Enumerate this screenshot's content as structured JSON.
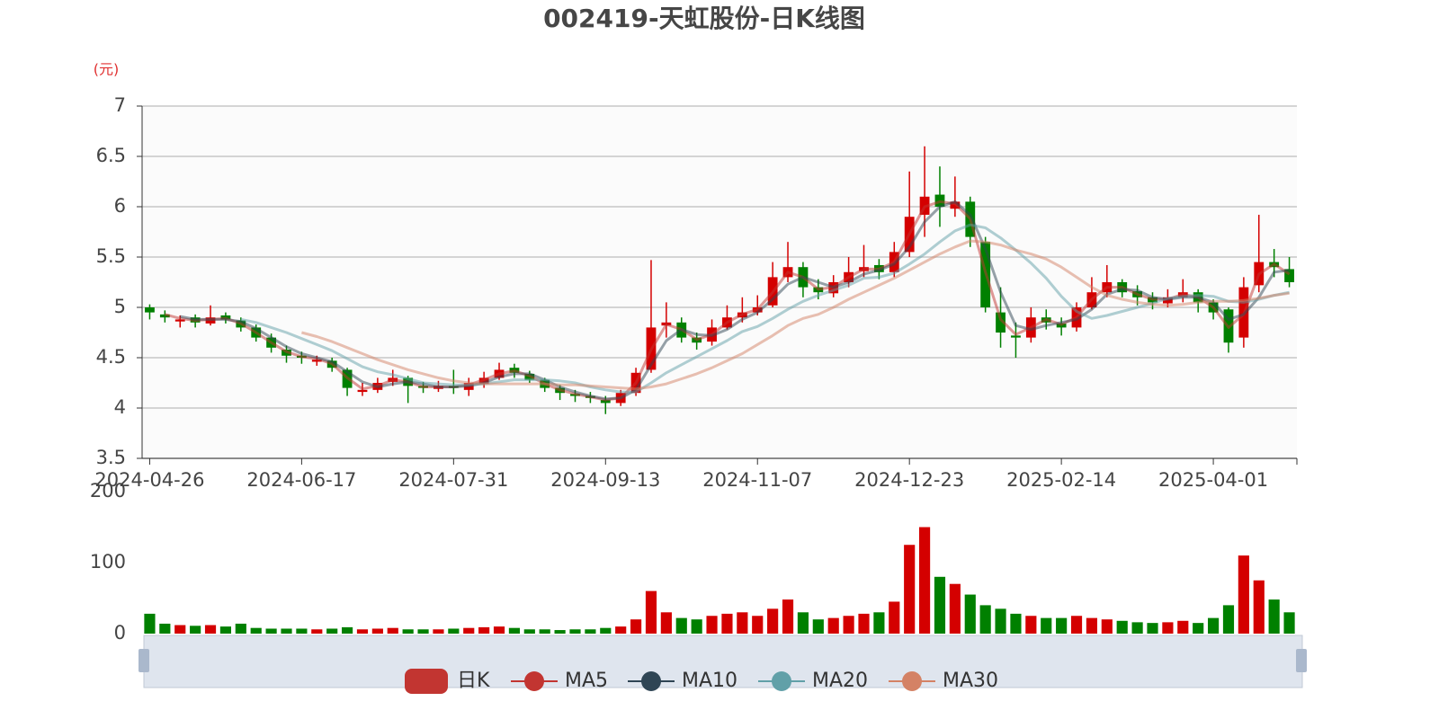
{
  "chart_data": {
    "type": "candlestick",
    "title": "002419-天虹股份-日K线图",
    "y_unit": "(元)",
    "up_color": "#d40000",
    "down_color": "#008000",
    "categories": [
      "2024-04-26",
      null,
      null,
      null,
      null,
      null,
      null,
      null,
      null,
      null,
      "2024-06-17",
      null,
      null,
      null,
      null,
      null,
      null,
      null,
      null,
      null,
      "2024-07-31",
      null,
      null,
      null,
      null,
      null,
      null,
      null,
      null,
      null,
      "2024-09-13",
      null,
      null,
      null,
      null,
      null,
      null,
      null,
      null,
      null,
      "2024-11-07",
      null,
      null,
      null,
      null,
      null,
      null,
      null,
      null,
      null,
      "2024-12-23",
      null,
      null,
      null,
      null,
      null,
      null,
      null,
      null,
      null,
      "2025-02-14",
      null,
      null,
      null,
      null,
      null,
      null,
      null,
      null,
      null,
      "2025-04-01",
      null,
      null,
      null,
      null,
      null
    ],
    "ylim": [
      3.5,
      7
    ],
    "yticks": [
      3.5,
      4,
      4.5,
      5,
      5.5,
      6,
      6.5,
      7
    ],
    "series": [
      {
        "name": "日K",
        "color": "#c23531",
        "values": [
          [
            5.0,
            4.95,
            4.88,
            5.03
          ],
          [
            4.93,
            4.9,
            4.85,
            4.97
          ],
          [
            4.86,
            4.88,
            4.8,
            4.92
          ],
          [
            4.9,
            4.85,
            4.8,
            4.93
          ],
          [
            4.84,
            4.9,
            4.82,
            5.02
          ],
          [
            4.92,
            4.88,
            4.84,
            4.95
          ],
          [
            4.87,
            4.8,
            4.76,
            4.9
          ],
          [
            4.8,
            4.7,
            4.66,
            4.83
          ],
          [
            4.7,
            4.6,
            4.55,
            4.74
          ],
          [
            4.58,
            4.52,
            4.45,
            4.62
          ],
          [
            4.52,
            4.5,
            4.44,
            4.56
          ],
          [
            4.46,
            4.48,
            4.42,
            4.52
          ],
          [
            4.47,
            4.4,
            4.36,
            4.5
          ],
          [
            4.38,
            4.2,
            4.12,
            4.4
          ],
          [
            4.16,
            4.18,
            4.12,
            4.25
          ],
          [
            4.18,
            4.25,
            4.15,
            4.3
          ],
          [
            4.26,
            4.3,
            4.22,
            4.38
          ],
          [
            4.3,
            4.22,
            4.05,
            4.32
          ],
          [
            4.22,
            4.2,
            4.15,
            4.26
          ],
          [
            4.19,
            4.22,
            4.16,
            4.27
          ],
          [
            4.22,
            4.2,
            4.14,
            4.38
          ],
          [
            4.18,
            4.25,
            4.12,
            4.3
          ],
          [
            4.24,
            4.3,
            4.2,
            4.36
          ],
          [
            4.3,
            4.38,
            4.28,
            4.45
          ],
          [
            4.4,
            4.35,
            4.3,
            4.44
          ],
          [
            4.34,
            4.28,
            4.25,
            4.37
          ],
          [
            4.28,
            4.2,
            4.16,
            4.3
          ],
          [
            4.2,
            4.15,
            4.08,
            4.23
          ],
          [
            4.14,
            4.12,
            4.06,
            4.18
          ],
          [
            4.12,
            4.1,
            4.05,
            4.16
          ],
          [
            4.08,
            4.05,
            3.94,
            4.12
          ],
          [
            4.05,
            4.15,
            4.02,
            4.18
          ],
          [
            4.15,
            4.35,
            4.12,
            4.4
          ],
          [
            4.38,
            4.8,
            4.35,
            5.47
          ],
          [
            4.82,
            4.85,
            4.7,
            5.05
          ],
          [
            4.85,
            4.7,
            4.65,
            4.9
          ],
          [
            4.7,
            4.65,
            4.58,
            4.75
          ],
          [
            4.66,
            4.8,
            4.62,
            4.88
          ],
          [
            4.8,
            4.9,
            4.78,
            5.02
          ],
          [
            4.9,
            4.95,
            4.85,
            5.1
          ],
          [
            4.95,
            5.0,
            4.92,
            5.12
          ],
          [
            5.02,
            5.3,
            5.0,
            5.45
          ],
          [
            5.3,
            5.4,
            5.25,
            5.65
          ],
          [
            5.4,
            5.2,
            5.1,
            5.45
          ],
          [
            5.2,
            5.15,
            5.08,
            5.28
          ],
          [
            5.14,
            5.25,
            5.1,
            5.32
          ],
          [
            5.25,
            5.35,
            5.2,
            5.5
          ],
          [
            5.36,
            5.4,
            5.3,
            5.62
          ],
          [
            5.42,
            5.35,
            5.28,
            5.48
          ],
          [
            5.35,
            5.55,
            5.3,
            5.65
          ],
          [
            5.55,
            5.9,
            5.5,
            6.35
          ],
          [
            5.92,
            6.1,
            5.7,
            6.6
          ],
          [
            6.12,
            6.0,
            5.8,
            6.4
          ],
          [
            5.98,
            6.05,
            5.9,
            6.3
          ],
          [
            6.05,
            5.7,
            5.6,
            6.1
          ],
          [
            5.65,
            5.0,
            4.95,
            5.7
          ],
          [
            4.95,
            4.75,
            4.6,
            5.2
          ],
          [
            4.72,
            4.7,
            4.5,
            4.85
          ],
          [
            4.7,
            4.9,
            4.65,
            5.0
          ],
          [
            4.9,
            4.85,
            4.78,
            4.98
          ],
          [
            4.84,
            4.8,
            4.72,
            4.9
          ],
          [
            4.8,
            5.0,
            4.76,
            5.05
          ],
          [
            5.0,
            5.15,
            4.98,
            5.3
          ],
          [
            5.15,
            5.25,
            5.1,
            5.42
          ],
          [
            5.25,
            5.15,
            5.1,
            5.28
          ],
          [
            5.16,
            5.1,
            5.02,
            5.22
          ],
          [
            5.1,
            5.05,
            4.98,
            5.15
          ],
          [
            5.04,
            5.1,
            5.0,
            5.18
          ],
          [
            5.1,
            5.15,
            5.05,
            5.28
          ],
          [
            5.15,
            5.05,
            4.95,
            5.18
          ],
          [
            5.05,
            4.95,
            4.88,
            5.08
          ],
          [
            4.98,
            4.65,
            4.55,
            5.0
          ],
          [
            4.7,
            5.2,
            4.6,
            5.3
          ],
          [
            5.22,
            5.45,
            5.15,
            5.92
          ],
          [
            5.45,
            5.4,
            5.3,
            5.58
          ],
          [
            5.38,
            5.25,
            5.2,
            5.5
          ]
        ]
      },
      {
        "name": "MA5",
        "color": "#c23531",
        "values": [
          null,
          4.93,
          4.89,
          4.87,
          4.88,
          4.89,
          4.84,
          4.75,
          4.65,
          4.56,
          4.51,
          4.49,
          4.44,
          4.3,
          4.19,
          4.22,
          4.28,
          4.26,
          4.21,
          4.21,
          4.21,
          4.23,
          4.28,
          4.34,
          4.37,
          4.32,
          4.24,
          4.18,
          4.14,
          4.11,
          4.08,
          4.1,
          4.25,
          4.58,
          4.83,
          4.78,
          4.68,
          4.73,
          4.85,
          4.93,
          4.98,
          5.15,
          5.35,
          5.3,
          5.18,
          5.2,
          5.3,
          5.38,
          5.38,
          5.45,
          5.73,
          6.0,
          6.05,
          6.03,
          5.88,
          5.35,
          4.88,
          4.73,
          4.8,
          4.88,
          4.83,
          4.9,
          5.08,
          5.2,
          5.2,
          5.13,
          5.08,
          5.08,
          5.13,
          5.1,
          5.0,
          4.8,
          4.93,
          5.33,
          5.43,
          5.33
        ]
      },
      {
        "name": "MA10",
        "color": "#2f4554",
        "values": [
          null,
          null,
          4.91,
          4.88,
          4.88,
          4.88,
          4.86,
          4.79,
          4.7,
          4.61,
          4.54,
          4.5,
          4.46,
          4.36,
          4.26,
          4.21,
          4.24,
          4.26,
          4.24,
          4.21,
          4.21,
          4.22,
          4.25,
          4.31,
          4.34,
          4.34,
          4.28,
          4.21,
          4.16,
          4.12,
          4.09,
          4.1,
          4.18,
          4.43,
          4.67,
          4.78,
          4.73,
          4.72,
          4.78,
          4.88,
          4.95,
          5.08,
          5.23,
          5.3,
          5.25,
          5.2,
          5.25,
          5.33,
          5.37,
          5.43,
          5.6,
          5.85,
          6.0,
          6.05,
          5.92,
          5.58,
          5.15,
          4.82,
          4.78,
          4.82,
          4.85,
          4.88,
          4.98,
          5.13,
          5.18,
          5.17,
          5.1,
          5.08,
          5.1,
          5.1,
          5.05,
          4.88,
          4.93,
          5.1,
          5.35,
          5.37
        ]
      },
      {
        "name": "MA20",
        "color": "#61a0a8",
        "values": [
          null,
          null,
          null,
          null,
          null,
          null,
          4.88,
          4.85,
          4.8,
          4.75,
          4.69,
          4.63,
          4.57,
          4.49,
          4.41,
          4.36,
          4.33,
          4.29,
          4.25,
          4.24,
          4.23,
          4.23,
          4.24,
          4.26,
          4.28,
          4.28,
          4.28,
          4.27,
          4.25,
          4.21,
          4.18,
          4.16,
          4.16,
          4.25,
          4.35,
          4.43,
          4.51,
          4.59,
          4.67,
          4.76,
          4.81,
          4.89,
          4.98,
          5.06,
          5.12,
          5.17,
          5.22,
          5.29,
          5.3,
          5.34,
          5.43,
          5.53,
          5.65,
          5.76,
          5.82,
          5.79,
          5.69,
          5.57,
          5.44,
          5.29,
          5.11,
          4.96,
          4.89,
          4.92,
          4.96,
          5.0,
          5.04,
          5.09,
          5.11,
          5.12,
          5.11,
          5.06,
          5.05,
          5.08,
          5.12,
          5.15
        ]
      },
      {
        "name": "MA30",
        "color": "#d48265",
        "values": [
          null,
          null,
          null,
          null,
          null,
          null,
          null,
          null,
          null,
          null,
          4.75,
          4.71,
          4.66,
          4.6,
          4.54,
          4.48,
          4.43,
          4.38,
          4.34,
          4.3,
          4.27,
          4.25,
          4.24,
          4.24,
          4.24,
          4.24,
          4.24,
          4.23,
          4.23,
          4.22,
          4.21,
          4.2,
          4.19,
          4.21,
          4.24,
          4.29,
          4.34,
          4.4,
          4.47,
          4.54,
          4.63,
          4.72,
          4.82,
          4.89,
          4.93,
          5.0,
          5.08,
          5.15,
          5.22,
          5.29,
          5.37,
          5.45,
          5.53,
          5.6,
          5.66,
          5.65,
          5.62,
          5.57,
          5.53,
          5.48,
          5.4,
          5.3,
          5.2,
          5.12,
          5.08,
          5.05,
          5.03,
          5.02,
          5.03,
          5.05,
          5.06,
          5.06,
          5.07,
          5.09,
          5.12,
          5.14
        ]
      }
    ],
    "volume": {
      "ylim": [
        0,
        200
      ],
      "yticks": [
        0,
        100,
        200
      ],
      "values": [
        28,
        14,
        12,
        11,
        12,
        10,
        14,
        8,
        7,
        7,
        7,
        6,
        7,
        9,
        6,
        7,
        8,
        6,
        6,
        6,
        7,
        8,
        9,
        10,
        8,
        6,
        6,
        5,
        6,
        6,
        8,
        10,
        20,
        60,
        30,
        22,
        20,
        25,
        28,
        30,
        25,
        35,
        48,
        30,
        20,
        22,
        25,
        28,
        30,
        45,
        125,
        150,
        80,
        70,
        55,
        40,
        35,
        28,
        25,
        22,
        22,
        25,
        22,
        20,
        18,
        16,
        15,
        16,
        18,
        15,
        22,
        40,
        110,
        75,
        48,
        30
      ]
    },
    "legend": "bottom"
  }
}
